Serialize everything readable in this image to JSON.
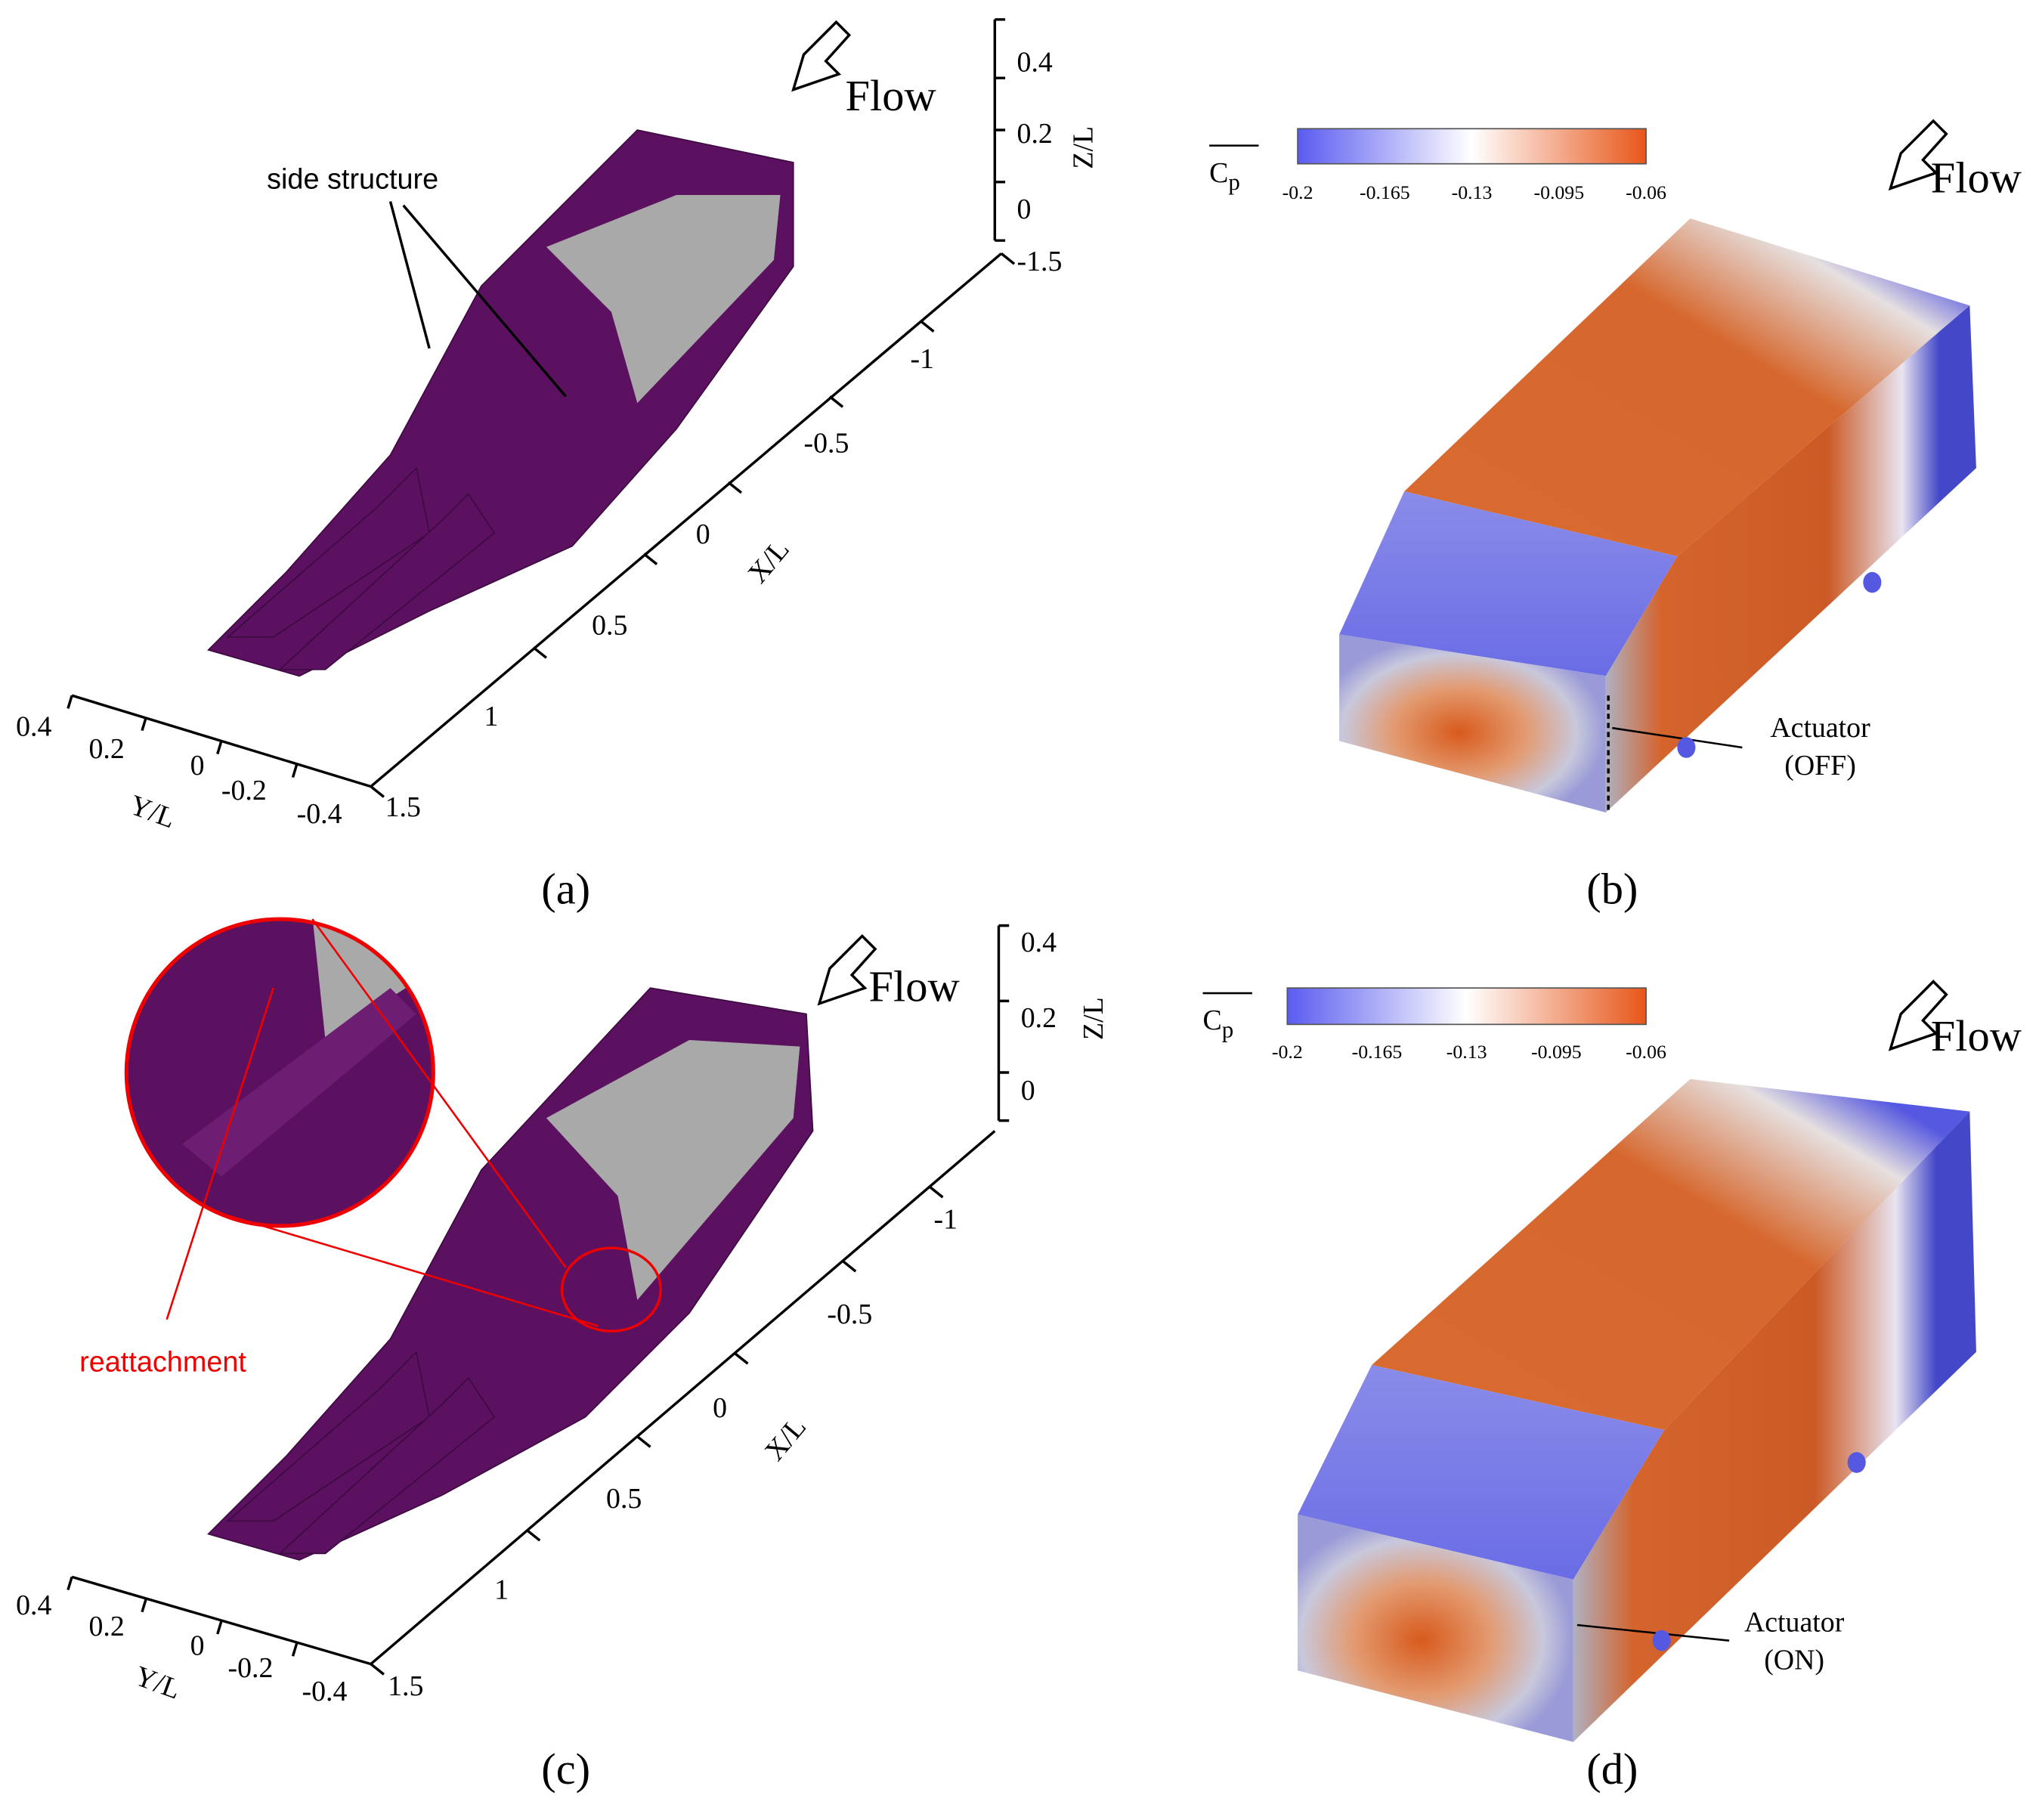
{
  "panels": [
    {
      "label": "(a)",
      "flow": "Flow",
      "annotation": "side structure",
      "z_axis": {
        "title": "Z/L",
        "ticks": [
          "0.4",
          "0.2",
          "0"
        ]
      },
      "x_axis": {
        "title": "X/L",
        "ticks": [
          "-1.5",
          "-1",
          "-0.5",
          "0",
          "0.5",
          "1",
          "1.5"
        ]
      },
      "y_axis": {
        "title": "Y/L",
        "ticks": [
          "0.4",
          "0.2",
          "0",
          "-0.2",
          "-0.4"
        ]
      }
    },
    {
      "label": "(b)",
      "flow": "Flow",
      "colorbar": {
        "symbol": "C",
        "subscript": "p",
        "ticks": [
          "-0.2",
          "-0.165",
          "-0.13",
          "-0.095",
          "-0.06"
        ]
      },
      "actuator": {
        "name": "Actuator",
        "state": "(OFF)"
      }
    },
    {
      "label": "(c)",
      "flow": "Flow",
      "annotation": "reattachment",
      "z_axis": {
        "title": "Z/L",
        "ticks": [
          "0.4",
          "0.2",
          "0"
        ]
      },
      "x_axis": {
        "title": "X/L",
        "ticks": [
          "-1",
          "-0.5",
          "0",
          "0.5",
          "1",
          "1.5"
        ]
      },
      "y_axis": {
        "title": "Y/L",
        "ticks": [
          "0.4",
          "0.2",
          "0",
          "-0.2",
          "-0.4"
        ]
      }
    },
    {
      "label": "(d)",
      "flow": "Flow",
      "colorbar": {
        "symbol": "C",
        "subscript": "p",
        "ticks": [
          "-0.2",
          "-0.165",
          "-0.13",
          "-0.095",
          "-0.06"
        ]
      },
      "actuator": {
        "name": "Actuator",
        "state": "(ON)"
      }
    }
  ]
}
